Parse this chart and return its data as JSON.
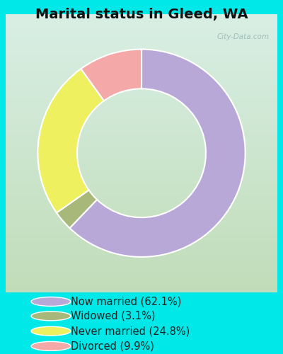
{
  "title": "Marital status in Gleed, WA",
  "slices": [
    62.1,
    3.1,
    24.8,
    9.9
  ],
  "labels": [
    "Now married (62.1%)",
    "Widowed (3.1%)",
    "Never married (24.8%)",
    "Divorced (9.9%)"
  ],
  "colors": [
    "#b8a8d8",
    "#a8b87a",
    "#eef060",
    "#f4a8a8"
  ],
  "bg_color_outer": "#00e8e8",
  "chart_bg_top_left": "#d0ece0",
  "chart_bg_bottom_right": "#c4e0c0",
  "title_fontsize": 14,
  "legend_fontsize": 10.5,
  "watermark": "City-Data.com",
  "start_angle": 90,
  "donut_width": 0.38
}
